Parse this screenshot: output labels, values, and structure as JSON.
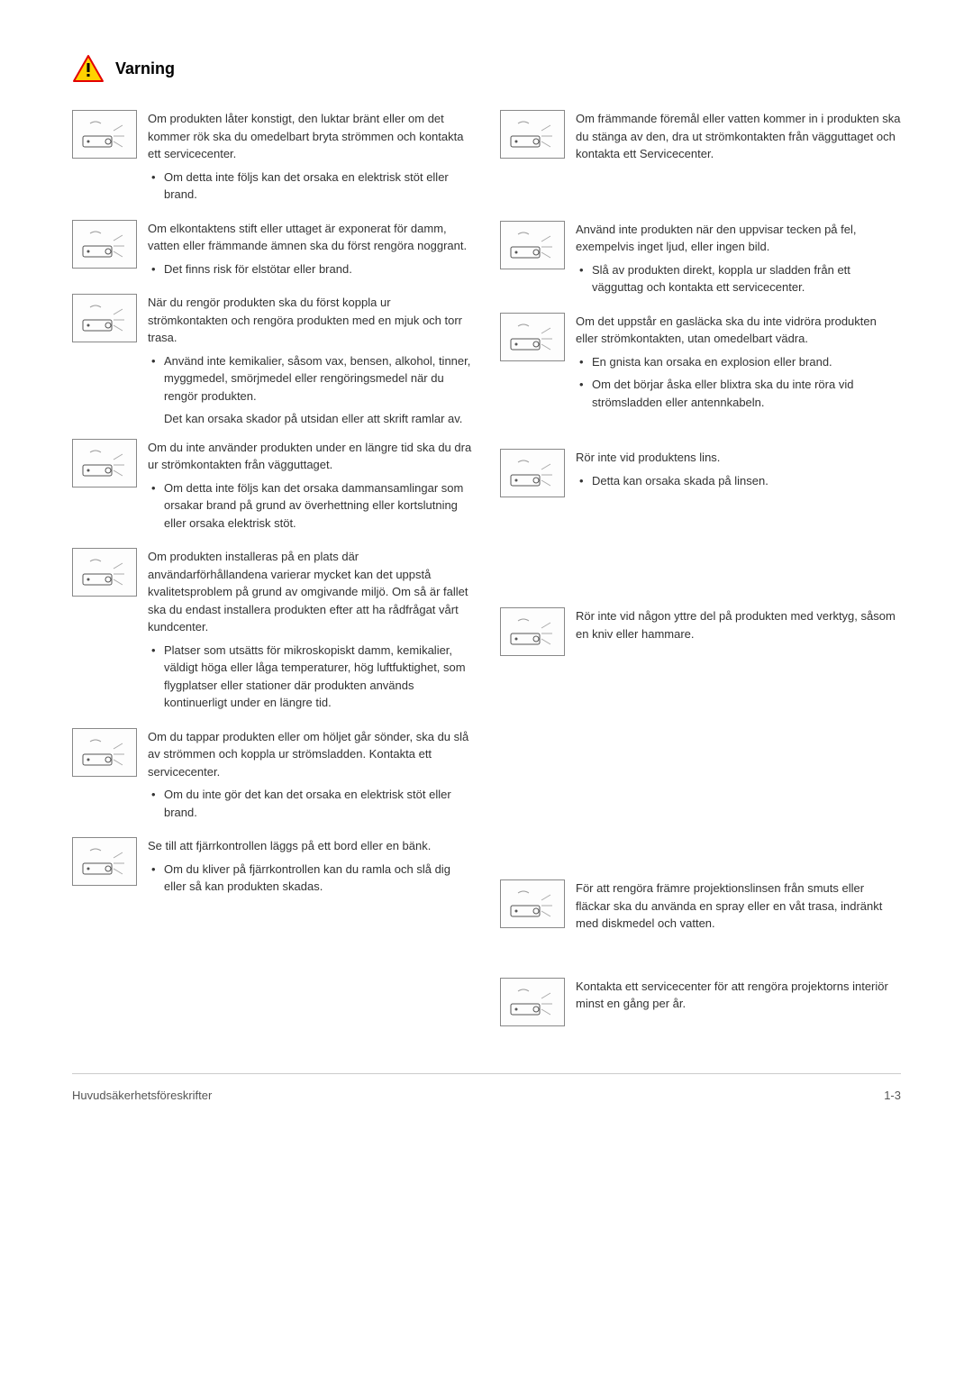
{
  "header": {
    "warning_label": "Varning"
  },
  "colors": {
    "triangle_fill": "#ffd200",
    "triangle_stroke": "#e30000",
    "body_text": "#333333",
    "border": "#888888",
    "footer_rule": "#cccccc",
    "footer_text": "#555555"
  },
  "typography": {
    "body_size_pt": 10,
    "title_size_pt": 13,
    "line_height": 1.5,
    "font_family": "Arial"
  },
  "left": [
    {
      "para": "Om produkten låter konstigt, den luktar bränt eller om det kommer rök ska du omedelbart bryta strömmen och kontakta ett servicecenter.",
      "bullets": [
        "Om detta inte följs kan det orsaka en elektrisk stöt eller brand."
      ]
    },
    {
      "para": "Om elkontaktens stift eller uttaget är exponerat för damm, vatten eller främmande ämnen ska du först rengöra noggrant.",
      "bullets": [
        "Det finns risk för elstötar eller brand."
      ]
    },
    {
      "para": "När du rengör produkten ska du först koppla ur strömkontakten och rengöra produkten med en mjuk och torr trasa.",
      "bullets": [
        "Använd inte kemikalier, såsom vax, bensen, alkohol, tinner, myggmedel, smörjmedel eller rengöringsmedel när du rengör produkten."
      ],
      "subnote": "Det kan orsaka skador på utsidan eller att skrift ramlar av."
    },
    {
      "para": "Om du inte använder produkten under en längre tid ska du dra ur strömkontakten från vägguttaget.",
      "bullets": [
        "Om detta inte följs kan det orsaka dammansamlingar som orsakar brand på grund av överhettning eller kortslutning eller orsaka elektrisk stöt."
      ]
    },
    {
      "para": "Om produkten installeras på en plats där användarförhållandena varierar mycket kan det uppstå kvalitetsproblem på grund av omgivande miljö. Om så är fallet ska du endast installera produkten efter att ha rådfrågat vårt kundcenter.",
      "bullets": [
        "Platser som utsätts för mikroskopiskt damm, kemikalier, väldigt höga eller låga temperaturer, hög luftfuktighet, som flygplatser eller stationer där produkten används kontinuerligt under en längre tid."
      ]
    },
    {
      "para": "Om du tappar produkten eller om höljet går sönder, ska du slå av strömmen och koppla ur strömsladden. Kontakta ett servicecenter.",
      "bullets": [
        "Om du inte gör det kan det orsaka en elektrisk stöt eller brand."
      ]
    },
    {
      "para": "Se till att fjärrkontrollen läggs på ett bord eller en bänk.",
      "bullets": [
        "Om du kliver på fjärrkontrollen kan du ramla och slå dig eller så kan produkten skadas."
      ]
    }
  ],
  "right": [
    {
      "para": "Om främmande föremål eller vatten kommer in i produkten ska du stänga av den, dra ut strömkontakten från vägguttaget och kontakta ett Servicecenter.",
      "bullets": []
    },
    {
      "para": "Använd inte produkten när den uppvisar tecken på fel, exempelvis inget ljud, eller ingen bild.",
      "bullets": [
        "Slå av produkten direkt, koppla ur sladden från ett vägguttag och kontakta ett servicecenter."
      ]
    },
    {
      "para": "Om det uppstår en gasläcka ska du inte vidröra produkten eller strömkontakten, utan omedelbart vädra.",
      "bullets": [
        "En gnista kan orsaka en explosion eller brand.",
        "Om det börjar åska eller blixtra ska du inte röra vid strömsladden eller antennkabeln."
      ]
    },
    {
      "para": "Rör inte vid produktens lins.",
      "bullets": [
        "Detta kan orsaka skada på linsen."
      ]
    },
    {
      "para": "Rör inte vid någon yttre del på produkten med verktyg, såsom en kniv eller hammare.",
      "bullets": []
    },
    {
      "para": "För att rengöra främre projektionslinsen från smuts eller fläckar ska du använda en spray eller en våt trasa, indränkt med diskmedel och vatten.",
      "bullets": []
    },
    {
      "para": "Kontakta ett servicecenter för att rengöra projektorns interiör minst en gång per år.",
      "bullets": []
    }
  ],
  "footer": {
    "left": "Huvudsäkerhetsföreskrifter",
    "right": "1-3"
  }
}
